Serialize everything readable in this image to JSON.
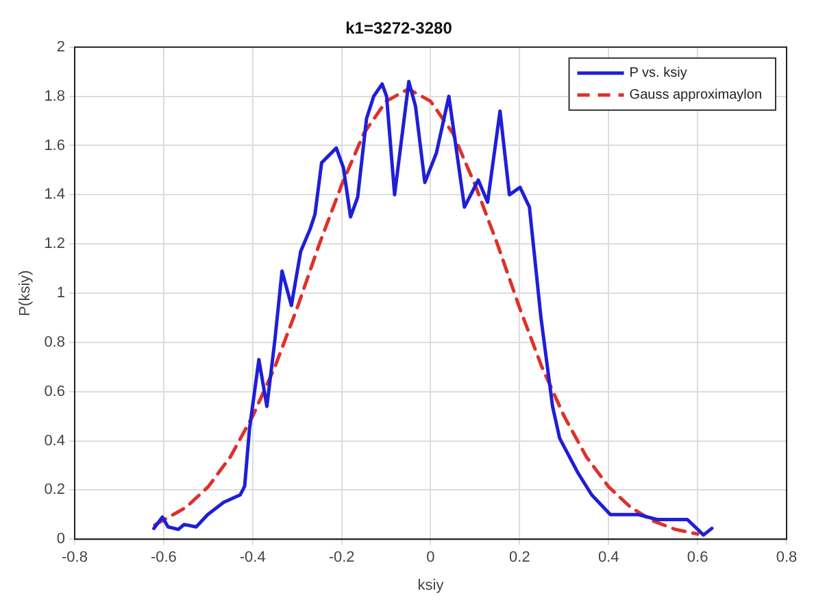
{
  "chart_data": {
    "type": "line",
    "title": "k1=3272-3280",
    "xlabel": "ksiy",
    "ylabel": "P(ksiy)",
    "xlim": [
      -0.8,
      0.8
    ],
    "xticks": [
      -0.8,
      -0.6,
      -0.4,
      -0.2,
      0,
      0.2,
      0.4,
      0.6,
      0.8
    ],
    "ylim": [
      0,
      2
    ],
    "yticks": [
      0,
      0.2,
      0.4,
      0.6,
      0.8,
      1,
      1.2,
      1.4,
      1.6,
      1.8,
      2
    ],
    "grid": true,
    "legend": "top right",
    "marker": "none",
    "series": [
      {
        "name": "P vs. ksiy",
        "color": "#1f1fd6",
        "line_style": "solid",
        "x": [
          -0.622,
          -0.603,
          -0.59,
          -0.567,
          -0.554,
          -0.527,
          -0.501,
          -0.465,
          -0.428,
          -0.418,
          -0.407,
          -0.386,
          -0.368,
          -0.35,
          -0.334,
          -0.313,
          -0.292,
          -0.271,
          -0.26,
          -0.245,
          -0.212,
          -0.196,
          -0.18,
          -0.164,
          -0.144,
          -0.128,
          -0.109,
          -0.099,
          -0.081,
          -0.049,
          -0.034,
          -0.013,
          0.013,
          0.041,
          0.076,
          0.107,
          0.128,
          0.156,
          0.177,
          0.201,
          0.222,
          0.248,
          0.274,
          0.29,
          0.331,
          0.362,
          0.404,
          0.467,
          0.509,
          0.55,
          0.577,
          0.603,
          0.613,
          0.632
        ],
        "values": [
          0.044,
          0.09,
          0.05,
          0.04,
          0.06,
          0.05,
          0.1,
          0.15,
          0.18,
          0.215,
          0.45,
          0.73,
          0.54,
          0.81,
          1.09,
          0.95,
          1.17,
          1.26,
          1.32,
          1.53,
          1.59,
          1.51,
          1.31,
          1.39,
          1.71,
          1.8,
          1.85,
          1.8,
          1.4,
          1.86,
          1.76,
          1.45,
          1.57,
          1.8,
          1.35,
          1.46,
          1.37,
          1.74,
          1.4,
          1.43,
          1.35,
          0.9,
          0.54,
          0.41,
          0.27,
          0.18,
          0.1,
          0.1,
          0.08,
          0.08,
          0.08,
          0.035,
          0.017,
          0.044
        ]
      },
      {
        "name": "Gauss approximaylon",
        "color": "#e0302a",
        "line_style": "dashed",
        "x": [
          -0.62,
          -0.55,
          -0.5,
          -0.45,
          -0.4,
          -0.35,
          -0.3,
          -0.25,
          -0.2,
          -0.15,
          -0.1,
          -0.05,
          0,
          0.05,
          0.1,
          0.15,
          0.2,
          0.25,
          0.3,
          0.35,
          0.4,
          0.45,
          0.5,
          0.55,
          0.6
        ],
        "values": [
          0.058,
          0.129,
          0.213,
          0.335,
          0.5,
          0.7,
          0.94,
          1.2,
          1.44,
          1.65,
          1.78,
          1.83,
          1.78,
          1.65,
          1.44,
          1.2,
          0.94,
          0.7,
          0.5,
          0.335,
          0.213,
          0.129,
          0.074,
          0.04,
          0.021
        ]
      }
    ]
  }
}
